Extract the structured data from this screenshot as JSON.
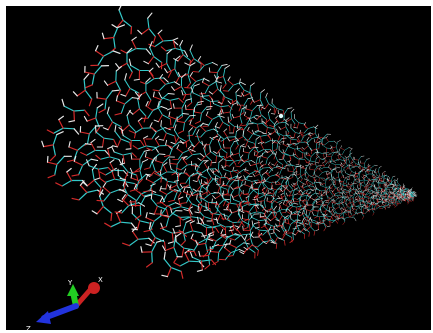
{
  "viewer": {
    "background_color": "#000000",
    "molecule_colors": {
      "carbon": "#33c9c9",
      "oxygen": "#d42a2a",
      "hydrogen": "#e8e8e8"
    },
    "axes": [
      {
        "name": "x",
        "label": "X",
        "color": "#cc2222"
      },
      {
        "name": "y",
        "label": "Y",
        "color": "#22cc22"
      },
      {
        "name": "z",
        "label": "Z",
        "color": "#2233dd"
      }
    ]
  }
}
